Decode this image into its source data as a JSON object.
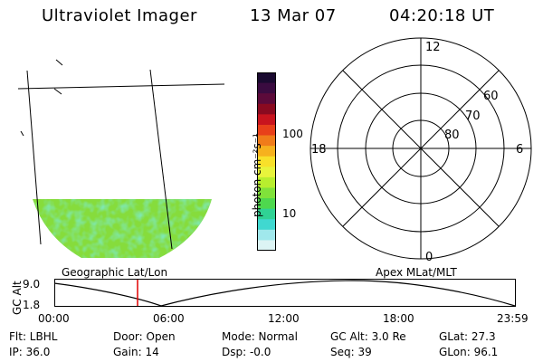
{
  "header": {
    "title": "Ultraviolet Imager",
    "date": "13 Mar 07",
    "time": "04:20:18 UT"
  },
  "colorbar": {
    "label": "photon cm⁻²s⁻¹",
    "ticks": [
      "100",
      "10"
    ],
    "colors": [
      "#1a0a30",
      "#3a0b40",
      "#5c0a3a",
      "#8a0a20",
      "#c8141e",
      "#e8401a",
      "#f07c1a",
      "#f6b11e",
      "#f8e02a",
      "#e8f43c",
      "#b8ee2e",
      "#80e23a",
      "#4ed84e",
      "#30d294",
      "#40d8d0",
      "#a0e8ec",
      "#dcf4f4"
    ]
  },
  "polar": {
    "mlt_labels": {
      "top": "12",
      "right": "6",
      "bottom": "0",
      "left": "18"
    },
    "lat_labels": [
      "60",
      "70",
      "80"
    ]
  },
  "altitude_strip": {
    "left_label": "Geographic Lat/Lon",
    "right_label": "Apex MLat/MLT",
    "axis_title": "GC Alt",
    "y_ticks": [
      "9.0",
      "1.8"
    ],
    "x_ticks": [
      "00:00",
      "06:00",
      "12:00",
      "18:00",
      "23:59"
    ]
  },
  "status": {
    "flt": "Flt: LBHL",
    "ip": "IP: 36.0",
    "door": "Door: Open",
    "gain": "Gain: 14",
    "mode": "Mode: Normal",
    "dsp": "Dsp:   -0.0",
    "gcalt": "GC Alt: 3.0 Re",
    "seq": "Seq: 39",
    "glat": "GLat:   27.3",
    "glon": "GLon:   96.1"
  }
}
